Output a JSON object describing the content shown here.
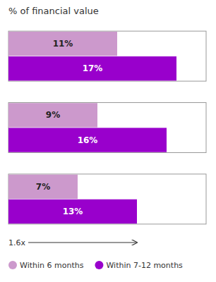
{
  "chart_data": {
    "type": "bar",
    "orientation": "horizontal",
    "title": "% of financial value",
    "categories": [
      null,
      null,
      null
    ],
    "series": [
      {
        "name": "Within 6 months",
        "color": "#cc99cc",
        "values": [
          11,
          9,
          7
        ],
        "value_labels": [
          "11%",
          "9%",
          "7%"
        ]
      },
      {
        "name": "Within 7-12 months",
        "color": "#9900cc",
        "values": [
          17,
          16,
          13
        ],
        "value_labels": [
          "17%",
          "16%",
          "13%"
        ]
      }
    ],
    "xlim": [
      0,
      20
    ],
    "data_labels": true,
    "tick_labels": false,
    "grid": false,
    "legend": "bottom",
    "annotations": [
      {
        "text": "1.6x"
      }
    ]
  }
}
